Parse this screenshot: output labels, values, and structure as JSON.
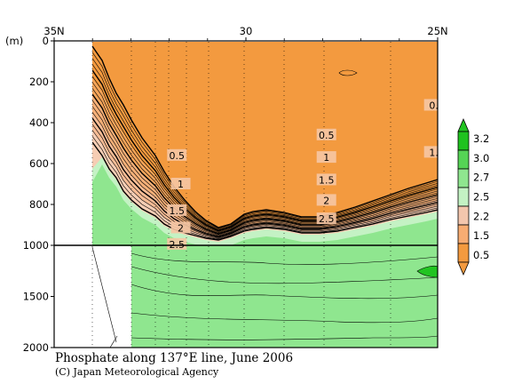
{
  "chart_data": {
    "type": "heatmap",
    "title": "Phosphate along 137°E line, June 2006",
    "credit": "(C) Japan Meteorological Agency",
    "x_ticks": [
      "35N",
      "30",
      "25N"
    ],
    "x_tick_values": [
      35,
      30,
      25
    ],
    "xlim": [
      35,
      25
    ],
    "y_unit": "(m)",
    "y_ticks": [
      "0",
      "200",
      "400",
      "600",
      "800",
      "1000",
      "1500",
      "2000"
    ],
    "y_tick_values": [
      0,
      200,
      400,
      600,
      800,
      1000,
      1500,
      2000
    ],
    "ylim": [
      0,
      2000
    ],
    "y_axis_break_at": 1000,
    "colorbar": {
      "labels": [
        "3.2",
        "3.0",
        "2.7",
        "2.5",
        "2.2",
        "1.5",
        "0.5"
      ],
      "colors": [
        "#1fc21f",
        "#55d455",
        "#8fe68f",
        "#c4f2c4",
        "#f3c6ad",
        "#f7ac72",
        "#f39a3f"
      ],
      "top_arrow_color": "#22c422",
      "bottom_arrow_color": "#f39a3f"
    },
    "contour_labels": [
      {
        "text": "0.5",
        "lat": 31.8,
        "depth": 560
      },
      {
        "text": "1",
        "lat": 31.7,
        "depth": 700
      },
      {
        "text": "1.5",
        "lat": 31.8,
        "depth": 830
      },
      {
        "text": "2",
        "lat": 31.7,
        "depth": 915
      },
      {
        "text": "2.5",
        "lat": 31.8,
        "depth": 995
      },
      {
        "text": "0.5",
        "lat": 27.9,
        "depth": 460
      },
      {
        "text": "1",
        "lat": 27.9,
        "depth": 570
      },
      {
        "text": "1.5",
        "lat": 27.9,
        "depth": 680
      },
      {
        "text": "2",
        "lat": 27.9,
        "depth": 780
      },
      {
        "text": "2.5",
        "lat": 27.9,
        "depth": 870
      },
      {
        "text": "0.",
        "lat": 25.1,
        "depth": 315
      },
      {
        "text": "1.",
        "lat": 25.1,
        "depth": 545
      }
    ]
  }
}
